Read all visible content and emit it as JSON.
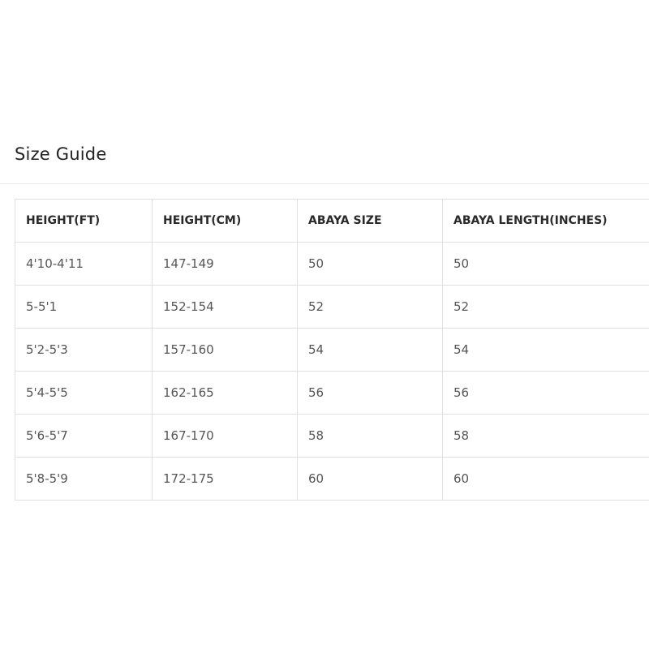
{
  "title": "Size Guide",
  "table": {
    "headers": [
      "HEIGHT(FT)",
      "HEIGHT(CM)",
      "ABAYA SIZE",
      "ABAYA LENGTH(INCHES)"
    ],
    "rows": [
      [
        "4'10-4'11",
        "147-149",
        "50",
        "50"
      ],
      [
        "5-5'1",
        "152-154",
        "52",
        "52"
      ],
      [
        "5'2-5'3",
        "157-160",
        "54",
        "54"
      ],
      [
        "5'4-5'5",
        "162-165",
        "56",
        "56"
      ],
      [
        "5'6-5'7",
        "167-170",
        "58",
        "58"
      ],
      [
        "5'8-5'9",
        "172-175",
        "60",
        "60"
      ]
    ]
  }
}
